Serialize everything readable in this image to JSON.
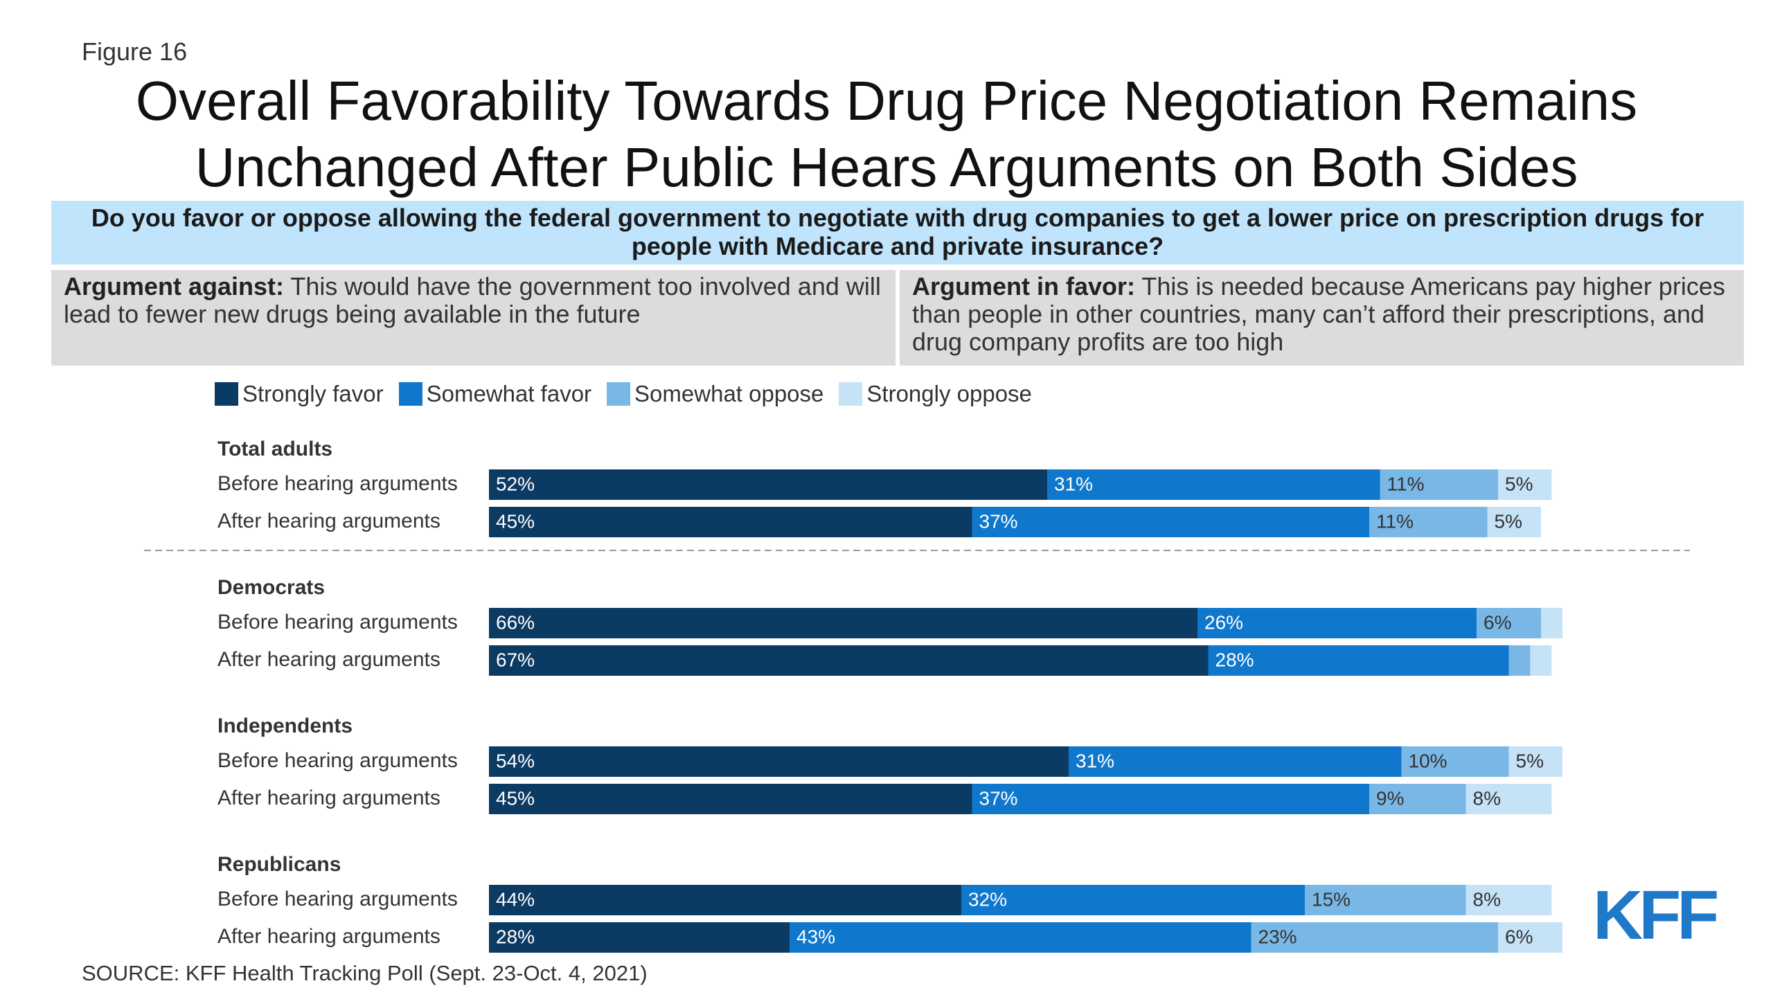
{
  "figure_label": "Figure 16",
  "title_line1": "Overall Favorability Towards Drug Price Negotiation Remains",
  "title_line2": "Unchanged After Public Hears Arguments on Both Sides",
  "question": "Do you favor or oppose allowing the federal government to negotiate with drug companies to get a lower price on prescription drugs for people with Medicare and private insurance?",
  "argument_against": {
    "label": "Argument against:",
    "text": " This would have the government too involved and will lead to fewer new drugs being available in the future"
  },
  "argument_favor": {
    "label": "Argument in favor:",
    "text": " This is needed because Americans pay higher prices than people in other countries, many can’t afford their prescriptions, and drug company profits are too high"
  },
  "source": "SOURCE: KFF Health Tracking Poll (Sept. 23-Oct. 4, 2021)",
  "logo": "KFF",
  "colors": {
    "strongly_favor": "#0b3a63",
    "somewhat_favor": "#0f77cc",
    "somewhat_oppose": "#79b8e6",
    "strongly_oppose": "#c6e2f6"
  },
  "chart_data": {
    "type": "bar",
    "orientation": "horizontal",
    "stacked": true,
    "xlim": [
      0,
      100
    ],
    "legend_position": "top",
    "series": [
      {
        "name": "Strongly favor",
        "color": "#0b3a63",
        "label_color": "#ffffff"
      },
      {
        "name": "Somewhat favor",
        "color": "#0f77cc",
        "label_color": "#ffffff"
      },
      {
        "name": "Somewhat oppose",
        "color": "#79b8e6",
        "label_color": "#333333"
      },
      {
        "name": "Strongly oppose",
        "color": "#c6e2f6",
        "label_color": "#333333"
      }
    ],
    "groups": [
      {
        "name": "Total adults",
        "rows": [
          {
            "label": "Before hearing arguments",
            "values": [
              52,
              31,
              11,
              5
            ],
            "labels": [
              "52%",
              "31%",
              "11%",
              "5%"
            ]
          },
          {
            "label": "After hearing arguments",
            "values": [
              45,
              37,
              11,
              5
            ],
            "labels": [
              "45%",
              "37%",
              "11%",
              "5%"
            ]
          }
        ]
      },
      {
        "name": "Democrats",
        "rows": [
          {
            "label": "Before hearing arguments",
            "values": [
              66,
              26,
              6,
              2
            ],
            "labels": [
              "66%",
              "26%",
              "6%",
              ""
            ]
          },
          {
            "label": "After hearing arguments",
            "values": [
              67,
              28,
              2,
              2
            ],
            "labels": [
              "67%",
              "28%",
              "",
              ""
            ]
          }
        ]
      },
      {
        "name": "Independents",
        "rows": [
          {
            "label": "Before hearing arguments",
            "values": [
              54,
              31,
              10,
              5
            ],
            "labels": [
              "54%",
              "31%",
              "10%",
              "5%"
            ]
          },
          {
            "label": "After hearing arguments",
            "values": [
              45,
              37,
              9,
              8
            ],
            "labels": [
              "45%",
              "37%",
              "9%",
              "8%"
            ]
          }
        ]
      },
      {
        "name": "Republicans",
        "rows": [
          {
            "label": "Before hearing arguments",
            "values": [
              44,
              32,
              15,
              8
            ],
            "labels": [
              "44%",
              "32%",
              "15%",
              "8%"
            ]
          },
          {
            "label": "After hearing arguments",
            "values": [
              28,
              43,
              23,
              6
            ],
            "labels": [
              "28%",
              "43%",
              "23%",
              "6%"
            ]
          }
        ]
      }
    ]
  }
}
